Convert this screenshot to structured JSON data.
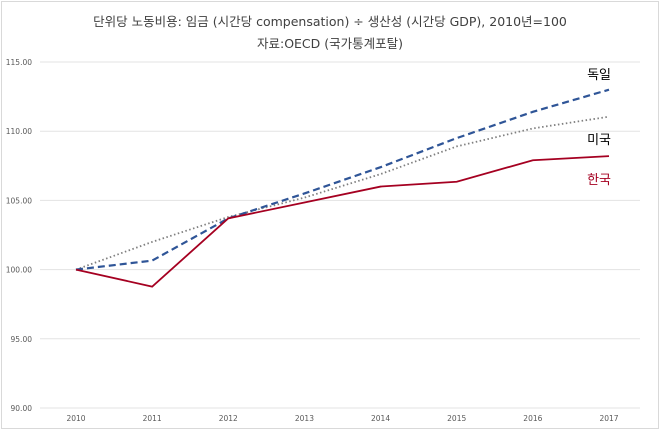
{
  "chart_data": {
    "type": "line",
    "title": "단위당 노동비용: 임금 (시간당 compensation) ÷ 생산성 (시간당 GDP), 2010년=100",
    "subtitle": "자료:OECD (국가통계포탈)",
    "xlabel": "",
    "ylabel": "",
    "categories": [
      "2010",
      "2011",
      "2012",
      "2013",
      "2014",
      "2015",
      "2016",
      "2017"
    ],
    "ylim": [
      90,
      115
    ],
    "yticks": [
      "90.00",
      "95.00",
      "100.00",
      "105.00",
      "110.00",
      "115.00"
    ],
    "grid": true,
    "series": [
      {
        "name": "독일",
        "color": "#2f5597",
        "style": "dashed",
        "values": [
          100,
          100.65,
          103.7,
          105.5,
          107.4,
          109.5,
          111.4,
          113.0
        ]
      },
      {
        "name": "미국",
        "color": "#7f7f7f",
        "style": "dotted",
        "values": [
          100,
          102.0,
          103.8,
          105.2,
          106.9,
          108.9,
          110.2,
          111.05
        ]
      },
      {
        "name": "한국",
        "color": "#a50021",
        "style": "solid",
        "values": [
          100,
          98.77,
          103.7,
          104.85,
          106.0,
          106.35,
          107.9,
          108.2
        ]
      }
    ]
  }
}
